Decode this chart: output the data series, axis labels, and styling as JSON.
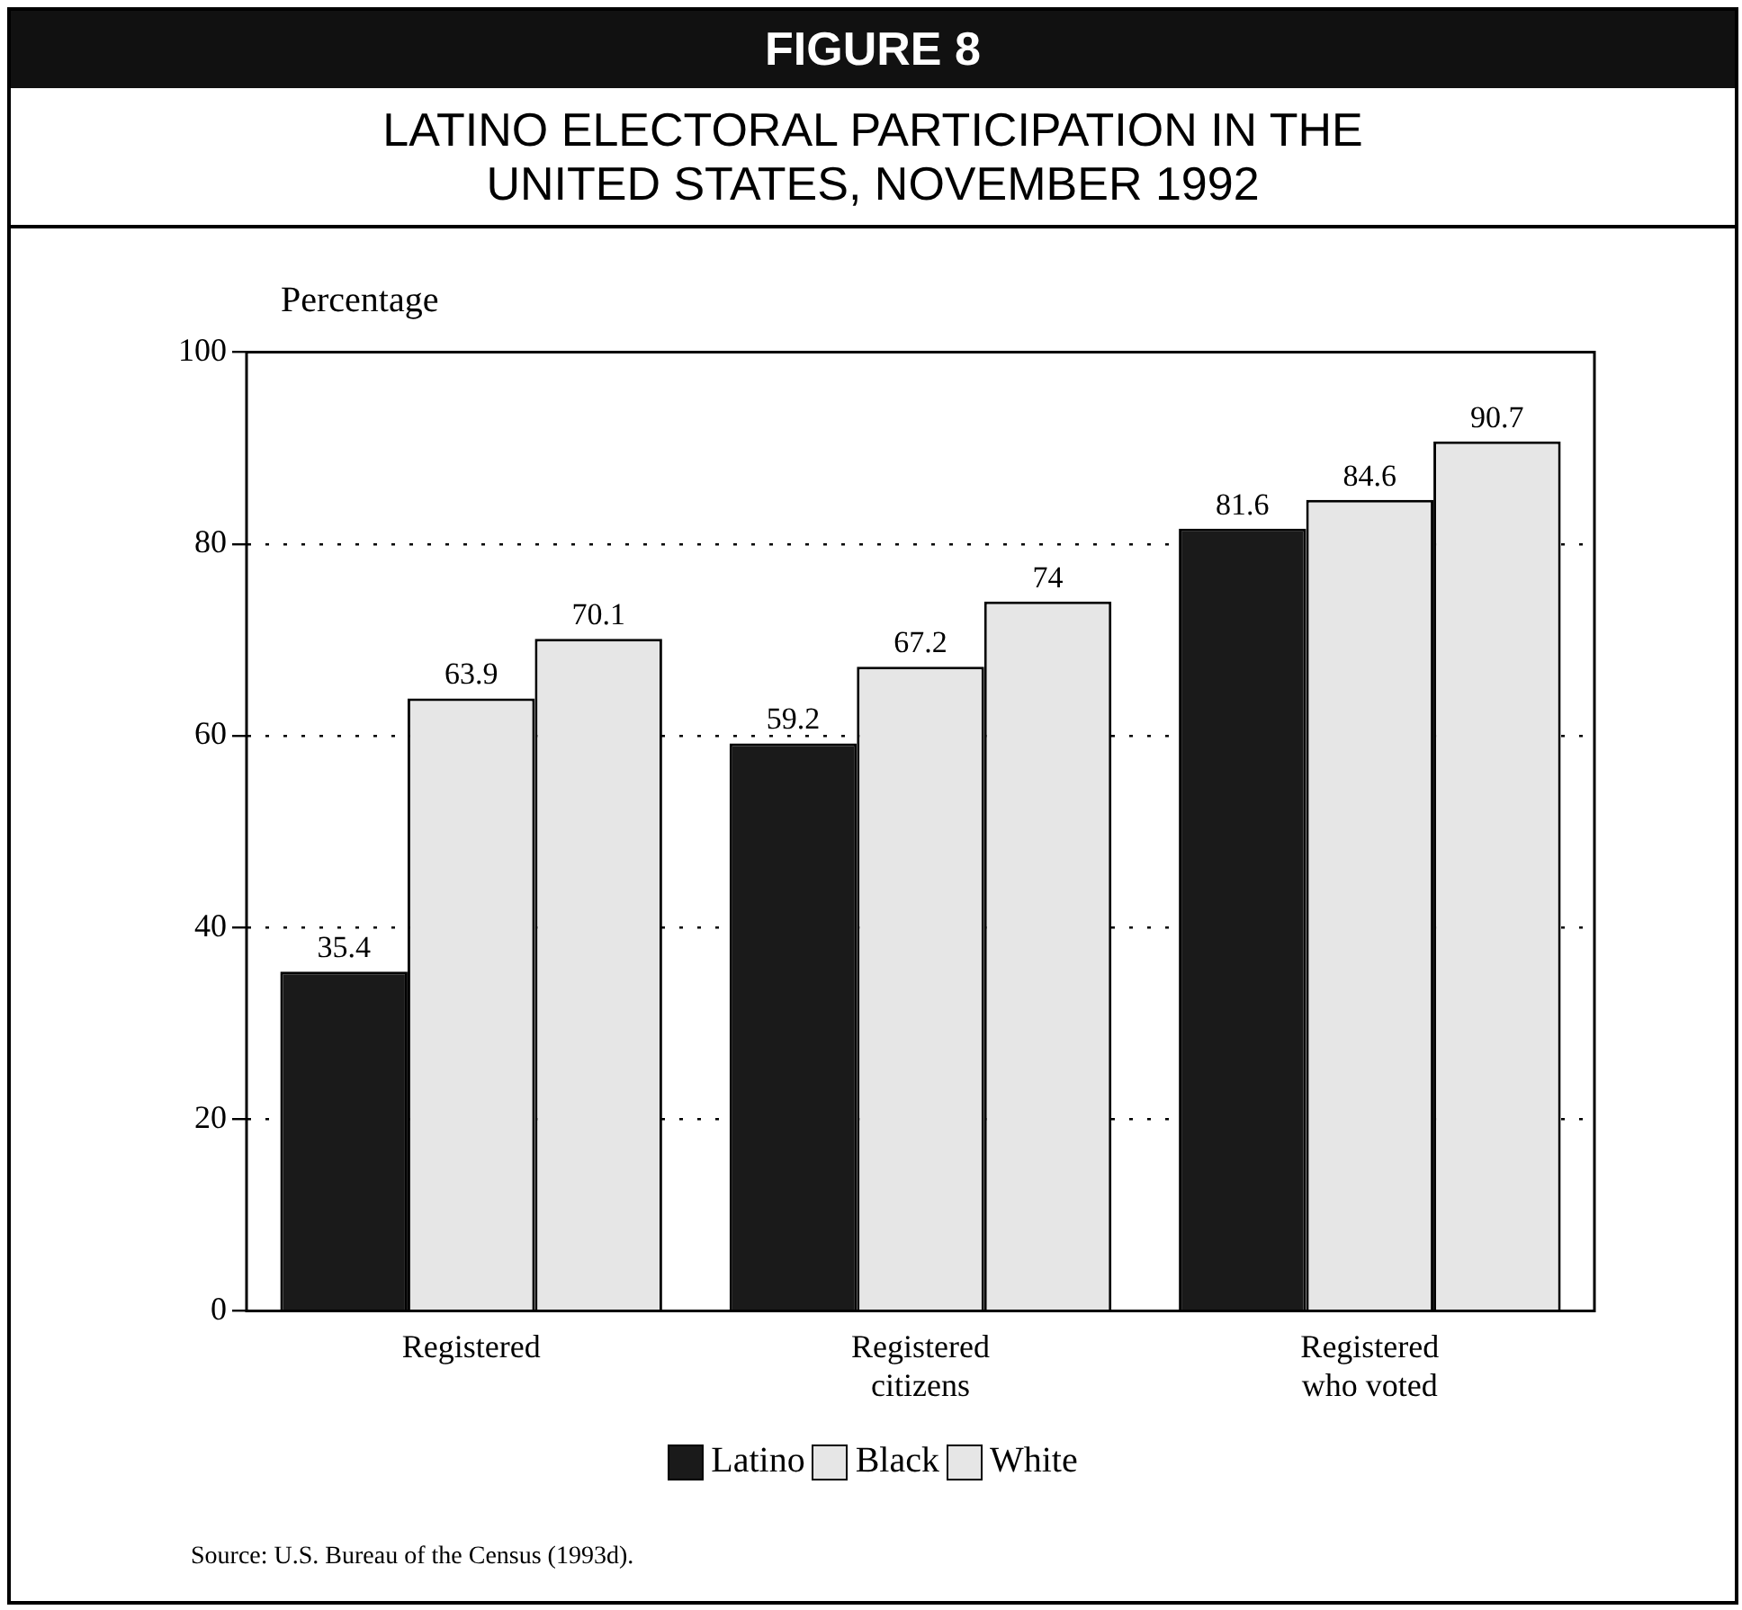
{
  "chart_data": {
    "type": "bar",
    "subtitle": "FIGURE 8",
    "title": "LATINO ELECTORAL PARTICIPATION IN THE UNITED STATES, NOVEMBER 1992",
    "ylabel": "Percentage",
    "categories": [
      "Registered",
      "Registered citizens",
      "Registered who voted"
    ],
    "series": [
      {
        "name": "Latino",
        "color": "#1a1a1a",
        "values": [
          35.4,
          59.2,
          81.6
        ]
      },
      {
        "name": "Black",
        "color": "#e6e6e6",
        "values": [
          63.9,
          67.2,
          84.6
        ]
      },
      {
        "name": "White",
        "color": "#e6e6e6",
        "values": [
          70.1,
          74,
          90.7
        ]
      }
    ],
    "ylim": [
      0,
      100
    ],
    "yticks": [
      0,
      20,
      40,
      60,
      80,
      100
    ],
    "grid": "y",
    "legend": "bottom",
    "data_labels": true,
    "annotations": [
      "Source: U.S. Bureau of the Census (1993d)."
    ]
  }
}
